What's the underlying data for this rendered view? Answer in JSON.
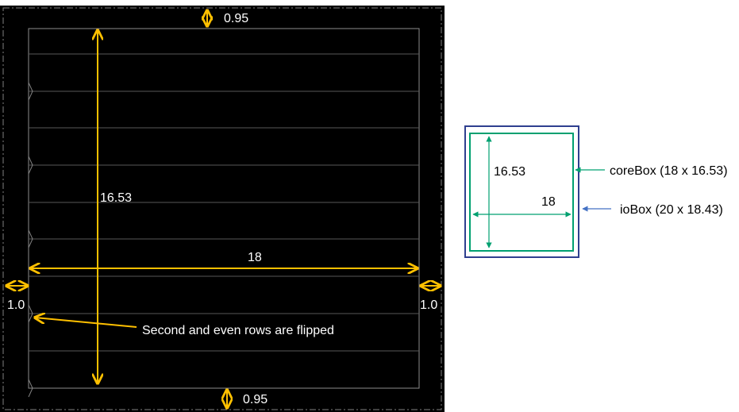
{
  "colors": {
    "background_canvas": "#000000",
    "row_lines": "#595959",
    "dimension_arrows": "#ffc000",
    "corebox": "#00a070",
    "iobox": "#2f3f8f",
    "iobox_pointer": "#4472c4"
  },
  "layout_diagram": {
    "top_margin_label": "0.95",
    "bottom_margin_label": "0.95",
    "left_margin_label": "1.0",
    "right_margin_label": "1.0",
    "height_label": "16.53",
    "width_label": "18",
    "rows_note": "Second and even rows are flipped"
  },
  "legend_diagram": {
    "height_label": "16.53",
    "width_label": "18",
    "corebox_label": "coreBox (18 x 16.53)",
    "iobox_label": "ioBox (20 x 18.43)"
  }
}
